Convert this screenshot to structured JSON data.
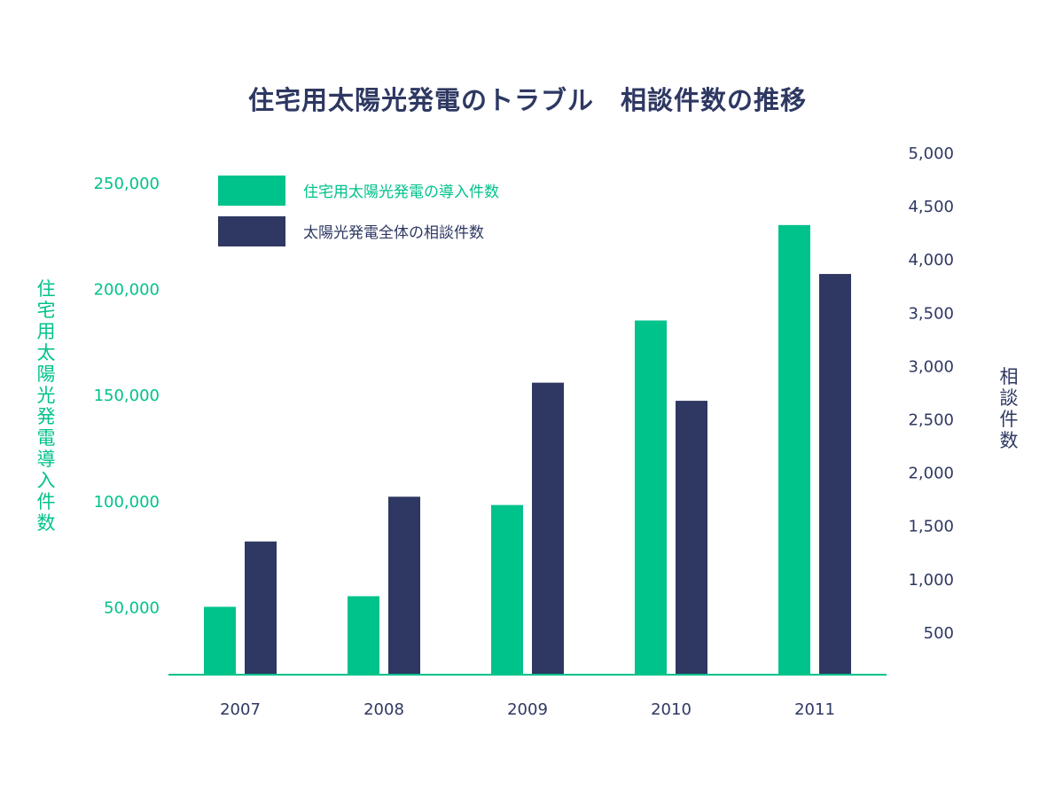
{
  "colors": {
    "primary": "#00c28b",
    "secondary": "#2e3862",
    "text": "#2e3862",
    "axis_line": "#00c28b"
  },
  "chart_data": {
    "type": "bar",
    "title": "住宅用太陽光発電のトラブル　相談件数の推移",
    "categories": [
      "2007",
      "2008",
      "2009",
      "2010",
      "2011"
    ],
    "series": [
      {
        "name": "住宅用太陽光発電の導入件数",
        "axis": "left",
        "color": "#00c28b",
        "values": [
          50000,
          55000,
          98000,
          185000,
          230000
        ]
      },
      {
        "name": "太陽光発電全体の相談件数",
        "axis": "right",
        "color": "#2e3862",
        "values": [
          1350,
          1770,
          2840,
          2670,
          3860
        ]
      }
    ],
    "y_left": {
      "label": "住宅用太陽光発電導入件数",
      "ticks": [
        "50,000",
        "100,000",
        "150,000",
        "200,000",
        "250,000"
      ],
      "tick_values": [
        50000,
        100000,
        150000,
        200000,
        250000
      ],
      "ylim": [
        18000,
        250000
      ]
    },
    "y_right": {
      "label": "相談件数",
      "ticks": [
        "500",
        "1,000",
        "1,500",
        "2,000",
        "2,500",
        "3,000",
        "3,500",
        "4,000",
        "4,500",
        "5,000"
      ],
      "tick_values": [
        500,
        1000,
        1500,
        2000,
        2500,
        3000,
        3500,
        4000,
        4500,
        5000
      ],
      "ylim": [
        100,
        5000
      ]
    },
    "legend_placement": "top-left",
    "grid": false
  }
}
